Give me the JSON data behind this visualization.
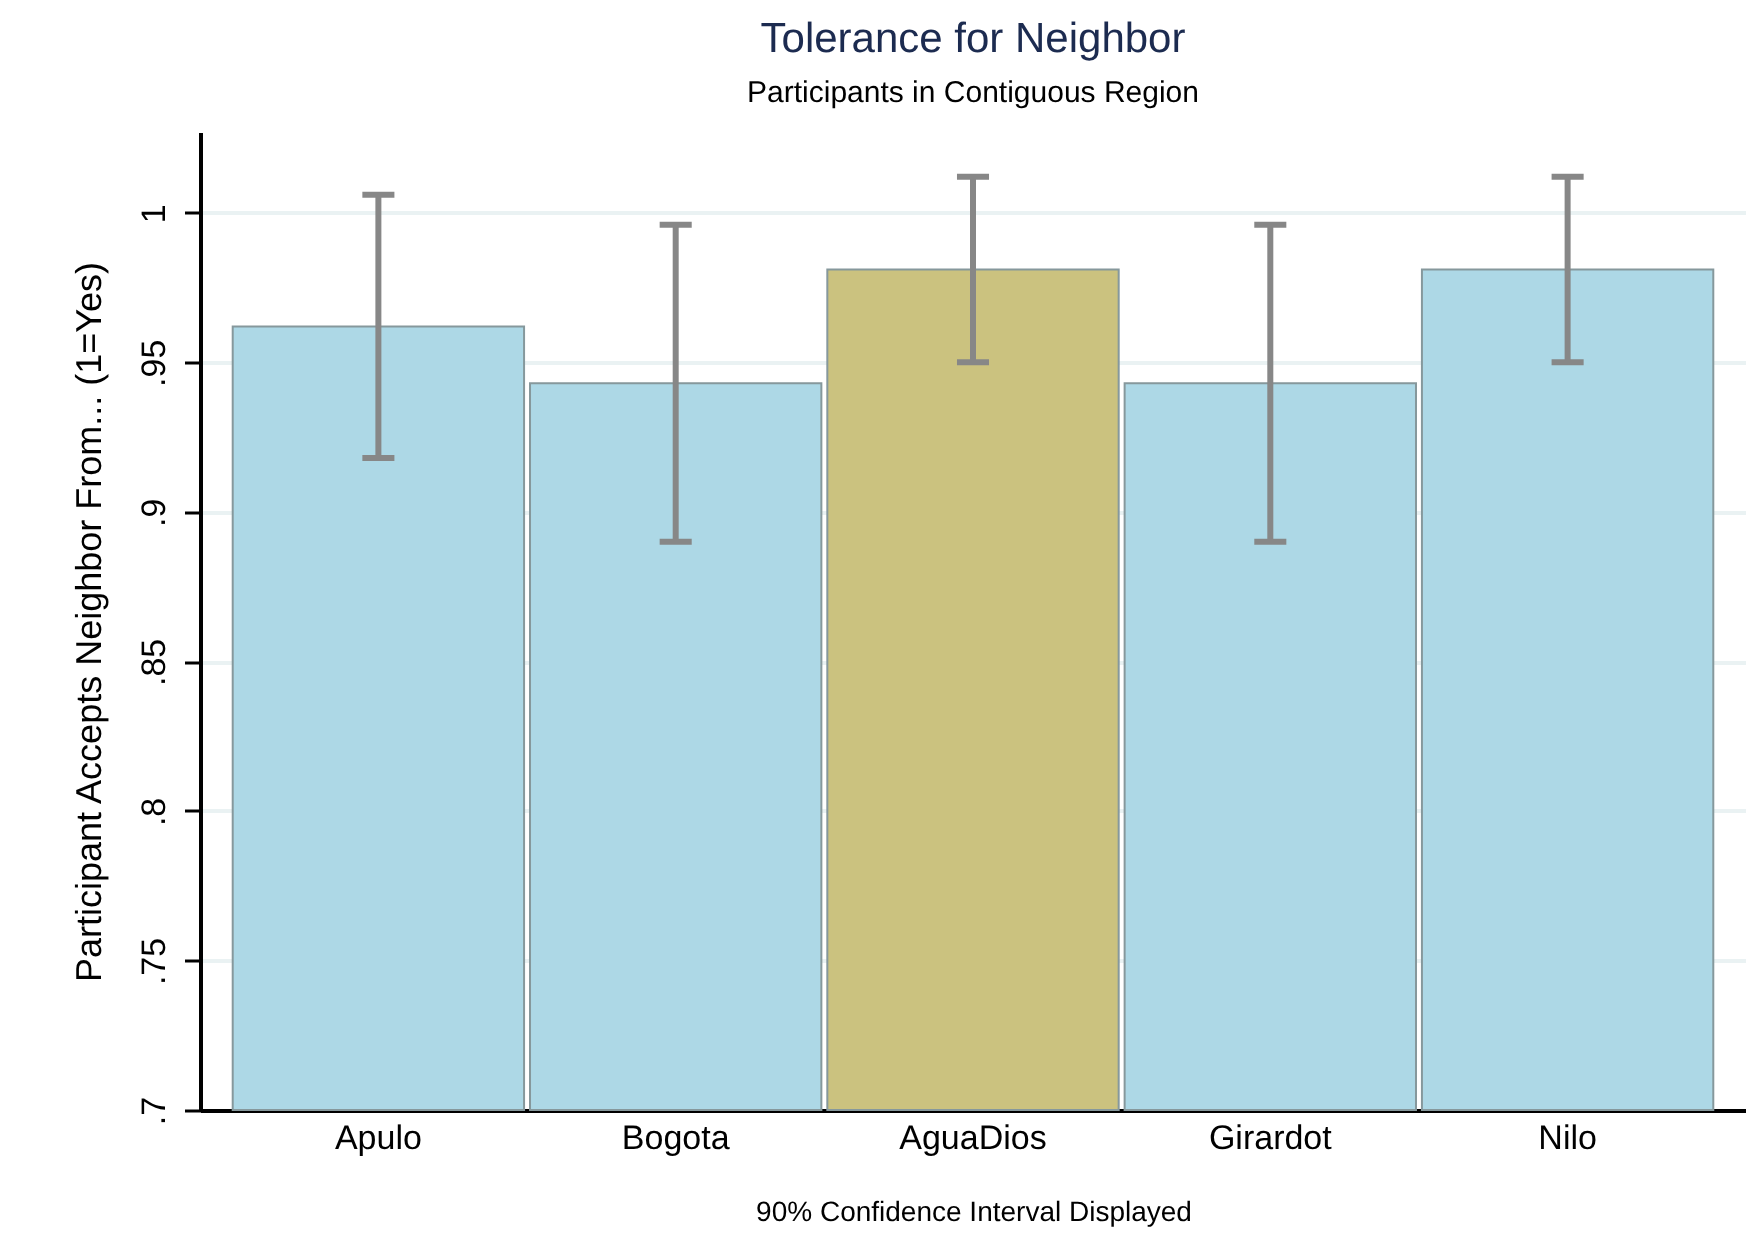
{
  "chart_data": {
    "type": "bar",
    "title": "Tolerance for Neighbor",
    "subtitle": "Participants in Contiguous Region",
    "xlabel": "90% Confidence Interval Displayed",
    "ylabel": "Participant Accepts Neighbor From... (1=Yes)",
    "categories": [
      "Apulo",
      "Bogota",
      "AguaDios",
      "Girardot",
      "Nilo"
    ],
    "values": [
      0.962,
      0.943,
      0.981,
      0.943,
      0.981
    ],
    "colors": [
      "#add8e6",
      "#add8e6",
      "#cbc27f",
      "#add8e6",
      "#add8e6"
    ],
    "errors": [
      [
        0.918,
        1.006
      ],
      [
        0.89,
        0.996
      ],
      [
        0.95,
        1.012
      ],
      [
        0.89,
        0.996
      ],
      [
        0.95,
        1.012
      ]
    ],
    "ylim": [
      0.7,
      1.027
    ],
    "yticks": [
      {
        "value": 0.7,
        "label": ".7"
      },
      {
        "value": 0.75,
        "label": ".75"
      },
      {
        "value": 0.8,
        "label": ".8"
      },
      {
        "value": 0.85,
        "label": ".85"
      },
      {
        "value": 0.9,
        "label": ".9"
      },
      {
        "value": 0.95,
        "label": ".95"
      },
      {
        "value": 1,
        "label": "1"
      }
    ],
    "grid": "y"
  }
}
